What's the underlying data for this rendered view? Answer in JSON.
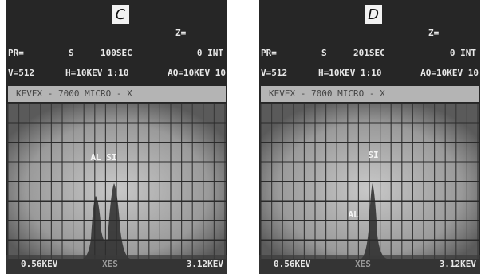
{
  "panels": [
    {
      "label": "C",
      "z": "Z=",
      "pr": "PR=",
      "s": "S",
      "time": "100SEC",
      "int": "0 INT",
      "v": "V=512",
      "h": "H=10KEV 1:10",
      "aq": "AQ=10KEV 10",
      "banner": "KEVEX - 7000   MICRO - X",
      "peak_labels": [
        "AL SI"
      ],
      "bottom_left": "0.56KEV",
      "bottom_mid": "XES",
      "bottom_right": "3.12KEV"
    },
    {
      "label": "D",
      "z": "Z=",
      "pr": "PR=",
      "s": "S",
      "time": "201SEC",
      "int": "0 INT",
      "v": "V=512",
      "h": "H=10KEV 1:10",
      "aq": "AQ=10KEV 10",
      "banner": "KEVEX - 7000   MICRO - X",
      "peak_labels": [
        "SI",
        "AL"
      ],
      "bottom_left": "0.56KEV",
      "bottom_mid": "XES",
      "bottom_right": "3.12KEV"
    }
  ]
}
